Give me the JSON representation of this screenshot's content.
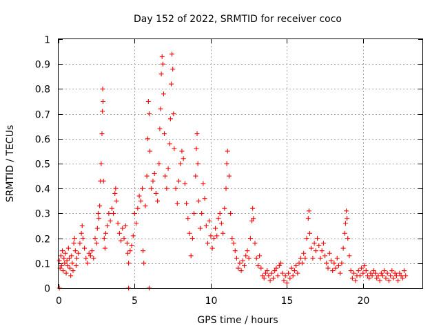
{
  "chart_data": {
    "type": "scatter",
    "title": "Day 152 of 2022, SRMTID for receiver coco",
    "xlabel": "GPS time / hours",
    "ylabel": "SRMTID / TECUs",
    "xlim": [
      0,
      23.9
    ],
    "ylim": [
      0,
      1
    ],
    "xticks": [
      0,
      5,
      10,
      15,
      20
    ],
    "xtick_labels": [
      "0",
      "5",
      "10",
      "15",
      "20"
    ],
    "yticks": [
      0,
      0.1,
      0.2,
      0.3,
      0.4,
      0.5,
      0.6,
      0.7,
      0.8,
      0.9,
      1
    ],
    "ytick_labels": [
      "0",
      "0.1",
      "0.2",
      "0.3",
      "0.4",
      "0.5",
      "0.6",
      "0.7",
      "0.8",
      "0.9",
      "1"
    ],
    "grid": true,
    "marker": "+",
    "color": "#ff0000",
    "series": [
      {
        "name": "SRMTID",
        "points": [
          [
            0.05,
            0.11
          ],
          [
            0.1,
            0.08
          ],
          [
            0.15,
            0.13
          ],
          [
            0.2,
            0.09
          ],
          [
            0.25,
            0.15
          ],
          [
            0.3,
            0.07
          ],
          [
            0.35,
            0.12
          ],
          [
            0.4,
            0.1
          ],
          [
            0.45,
            0.14
          ],
          [
            0.5,
            0.06
          ],
          [
            0.55,
            0.11
          ],
          [
            0.6,
            0.09
          ],
          [
            0.65,
            0.16
          ],
          [
            0.7,
            0.12
          ],
          [
            0.75,
            0.08
          ],
          [
            0.8,
            0.05
          ],
          [
            0.85,
            0.13
          ],
          [
            0.9,
            0.1
          ],
          [
            0.95,
            0.07
          ],
          [
            1.0,
            0.18
          ],
          [
            1.05,
            0.2
          ],
          [
            1.1,
            0.15
          ],
          [
            1.15,
            0.09
          ],
          [
            1.2,
            0.12
          ],
          [
            1.3,
            0.14
          ],
          [
            1.4,
            0.18
          ],
          [
            1.5,
            0.22
          ],
          [
            1.55,
            0.25
          ],
          [
            1.6,
            0.2
          ],
          [
            1.7,
            0.16
          ],
          [
            1.8,
            0.12
          ],
          [
            1.9,
            0.1
          ],
          [
            2.0,
            0.14
          ],
          [
            2.1,
            0.13
          ],
          [
            2.2,
            0.15
          ],
          [
            2.3,
            0.12
          ],
          [
            2.4,
            0.2
          ],
          [
            2.5,
            0.18
          ],
          [
            2.55,
            0.24
          ],
          [
            2.6,
            0.3
          ],
          [
            2.65,
            0.28
          ],
          [
            2.7,
            0.33
          ],
          [
            2.75,
            0.43
          ],
          [
            2.8,
            0.5
          ],
          [
            2.85,
            0.62
          ],
          [
            2.88,
            0.71
          ],
          [
            2.9,
            0.8
          ],
          [
            2.92,
            0.75
          ],
          [
            2.95,
            0.43
          ],
          [
            3.0,
            0.2
          ],
          [
            3.05,
            0.16
          ],
          [
            3.1,
            0.22
          ],
          [
            3.2,
            0.25
          ],
          [
            3.3,
            0.3
          ],
          [
            3.4,
            0.27
          ],
          [
            3.5,
            0.32
          ],
          [
            3.6,
            0.3
          ],
          [
            3.7,
            0.38
          ],
          [
            3.75,
            0.4
          ],
          [
            3.8,
            0.35
          ],
          [
            3.9,
            0.26
          ],
          [
            4.0,
            0.22
          ],
          [
            4.1,
            0.19
          ],
          [
            4.2,
            0.24
          ],
          [
            4.3,
            0.2
          ],
          [
            4.4,
            0.25
          ],
          [
            4.5,
            0.18
          ],
          [
            4.55,
            0.14
          ],
          [
            4.6,
            0.1
          ],
          [
            4.7,
            0.15
          ],
          [
            4.8,
            0.17
          ],
          [
            4.9,
            0.21
          ],
          [
            5.0,
            0.3
          ],
          [
            5.1,
            0.26
          ],
          [
            5.2,
            0.32
          ],
          [
            5.3,
            0.37
          ],
          [
            5.4,
            0.35
          ],
          [
            5.5,
            0.4
          ],
          [
            5.55,
            0.15
          ],
          [
            5.6,
            0.1
          ],
          [
            5.7,
            0.33
          ],
          [
            5.8,
            0.45
          ],
          [
            5.85,
            0.6
          ],
          [
            5.9,
            0.75
          ],
          [
            5.95,
            0.7
          ],
          [
            6.0,
            0.55
          ],
          [
            6.1,
            0.4
          ],
          [
            6.2,
            0.43
          ],
          [
            6.3,
            0.46
          ],
          [
            6.4,
            0.38
          ],
          [
            6.5,
            0.35
          ],
          [
            6.6,
            0.5
          ],
          [
            6.65,
            0.64
          ],
          [
            6.7,
            0.72
          ],
          [
            6.75,
            0.86
          ],
          [
            6.8,
            0.93
          ],
          [
            6.85,
            0.9
          ],
          [
            6.9,
            0.78
          ],
          [
            6.95,
            0.62
          ],
          [
            7.0,
            0.45
          ],
          [
            7.1,
            0.4
          ],
          [
            7.2,
            0.48
          ],
          [
            7.3,
            0.58
          ],
          [
            7.35,
            0.68
          ],
          [
            7.4,
            0.82
          ],
          [
            7.45,
            0.94
          ],
          [
            7.5,
            0.88
          ],
          [
            7.55,
            0.7
          ],
          [
            7.6,
            0.56
          ],
          [
            7.7,
            0.4
          ],
          [
            7.8,
            0.34
          ],
          [
            7.9,
            0.43
          ],
          [
            8.0,
            0.5
          ],
          [
            8.1,
            0.55
          ],
          [
            8.2,
            0.52
          ],
          [
            8.3,
            0.42
          ],
          [
            8.4,
            0.34
          ],
          [
            8.5,
            0.28
          ],
          [
            8.6,
            0.22
          ],
          [
            8.7,
            0.13
          ],
          [
            8.8,
            0.2
          ],
          [
            8.9,
            0.3
          ],
          [
            9.0,
            0.45
          ],
          [
            9.05,
            0.56
          ],
          [
            9.1,
            0.62
          ],
          [
            9.15,
            0.5
          ],
          [
            9.2,
            0.35
          ],
          [
            9.3,
            0.24
          ],
          [
            9.4,
            0.3
          ],
          [
            9.5,
            0.42
          ],
          [
            9.6,
            0.36
          ],
          [
            9.7,
            0.25
          ],
          [
            9.8,
            0.18
          ],
          [
            9.9,
            0.27
          ],
          [
            10.0,
            0.21
          ],
          [
            10.1,
            0.16
          ],
          [
            10.2,
            0.2
          ],
          [
            10.3,
            0.24
          ],
          [
            10.4,
            0.21
          ],
          [
            10.5,
            0.28
          ],
          [
            10.6,
            0.3
          ],
          [
            10.7,
            0.26
          ],
          [
            10.8,
            0.22
          ],
          [
            10.9,
            0.32
          ],
          [
            11.0,
            0.4
          ],
          [
            11.05,
            0.5
          ],
          [
            11.1,
            0.55
          ],
          [
            11.2,
            0.45
          ],
          [
            11.3,
            0.3
          ],
          [
            11.4,
            0.2
          ],
          [
            11.5,
            0.18
          ],
          [
            11.6,
            0.15
          ],
          [
            11.7,
            0.12
          ],
          [
            11.8,
            0.08
          ],
          [
            11.9,
            0.1
          ],
          [
            12.0,
            0.07
          ],
          [
            12.1,
            0.11
          ],
          [
            12.2,
            0.09
          ],
          [
            12.3,
            0.13
          ],
          [
            12.4,
            0.15
          ],
          [
            12.5,
            0.12
          ],
          [
            12.6,
            0.2
          ],
          [
            12.7,
            0.27
          ],
          [
            12.75,
            0.32
          ],
          [
            12.8,
            0.28
          ],
          [
            12.9,
            0.18
          ],
          [
            13.0,
            0.12
          ],
          [
            13.1,
            0.09
          ],
          [
            13.2,
            0.13
          ],
          [
            13.3,
            0.08
          ],
          [
            13.4,
            0.05
          ],
          [
            13.5,
            0.04
          ],
          [
            13.6,
            0.06
          ],
          [
            13.7,
            0.07
          ],
          [
            13.8,
            0.05
          ],
          [
            13.9,
            0.03
          ],
          [
            14.0,
            0.06
          ],
          [
            14.1,
            0.04
          ],
          [
            14.2,
            0.07
          ],
          [
            14.3,
            0.08
          ],
          [
            14.4,
            0.05
          ],
          [
            14.5,
            0.09
          ],
          [
            14.6,
            0.1
          ],
          [
            14.7,
            0.06
          ],
          [
            14.8,
            0.03
          ],
          [
            14.9,
            0.05
          ],
          [
            15.0,
            0.02
          ],
          [
            15.1,
            0.06
          ],
          [
            15.2,
            0.04
          ],
          [
            15.3,
            0.08
          ],
          [
            15.4,
            0.05
          ],
          [
            15.5,
            0.07
          ],
          [
            15.6,
            0.09
          ],
          [
            15.7,
            0.06
          ],
          [
            15.8,
            0.1
          ],
          [
            15.9,
            0.12
          ],
          [
            16.0,
            0.1
          ],
          [
            16.1,
            0.14
          ],
          [
            16.2,
            0.12
          ],
          [
            16.3,
            0.2
          ],
          [
            16.4,
            0.28
          ],
          [
            16.45,
            0.31
          ],
          [
            16.5,
            0.22
          ],
          [
            16.6,
            0.16
          ],
          [
            16.7,
            0.12
          ],
          [
            16.8,
            0.18
          ],
          [
            16.9,
            0.15
          ],
          [
            17.0,
            0.2
          ],
          [
            17.1,
            0.17
          ],
          [
            17.2,
            0.12
          ],
          [
            17.3,
            0.15
          ],
          [
            17.4,
            0.18
          ],
          [
            17.5,
            0.13
          ],
          [
            17.6,
            0.1
          ],
          [
            17.7,
            0.08
          ],
          [
            17.8,
            0.14
          ],
          [
            17.9,
            0.11
          ],
          [
            18.0,
            0.07
          ],
          [
            18.1,
            0.1
          ],
          [
            18.2,
            0.08
          ],
          [
            18.3,
            0.12
          ],
          [
            18.4,
            0.09
          ],
          [
            18.5,
            0.06
          ],
          [
            18.6,
            0.1
          ],
          [
            18.7,
            0.16
          ],
          [
            18.8,
            0.22
          ],
          [
            18.85,
            0.26
          ],
          [
            18.9,
            0.31
          ],
          [
            18.95,
            0.28
          ],
          [
            19.0,
            0.2
          ],
          [
            19.1,
            0.13
          ],
          [
            19.2,
            0.07
          ],
          [
            19.3,
            0.04
          ],
          [
            19.4,
            0.06
          ],
          [
            19.5,
            0.03
          ],
          [
            19.6,
            0.05
          ],
          [
            19.7,
            0.07
          ],
          [
            19.8,
            0.05
          ],
          [
            19.9,
            0.08
          ],
          [
            20.0,
            0.06
          ],
          [
            20.1,
            0.09
          ],
          [
            20.2,
            0.07
          ],
          [
            20.3,
            0.05
          ],
          [
            20.4,
            0.04
          ],
          [
            20.5,
            0.06
          ],
          [
            20.6,
            0.05
          ],
          [
            20.7,
            0.07
          ],
          [
            20.8,
            0.06
          ],
          [
            20.9,
            0.04
          ],
          [
            21.0,
            0.05
          ],
          [
            21.1,
            0.03
          ],
          [
            21.2,
            0.06
          ],
          [
            21.3,
            0.05
          ],
          [
            21.4,
            0.07
          ],
          [
            21.5,
            0.04
          ],
          [
            21.6,
            0.06
          ],
          [
            21.7,
            0.03
          ],
          [
            21.8,
            0.05
          ],
          [
            21.9,
            0.07
          ],
          [
            22.0,
            0.04
          ],
          [
            22.1,
            0.06
          ],
          [
            22.2,
            0.05
          ],
          [
            22.3,
            0.03
          ],
          [
            22.4,
            0.06
          ],
          [
            22.5,
            0.05
          ],
          [
            22.6,
            0.04
          ],
          [
            22.7,
            0.07
          ],
          [
            22.8,
            0.05
          ],
          [
            0.05,
            0.0
          ],
          [
            4.6,
            0.0
          ],
          [
            5.95,
            0.0
          ]
        ]
      }
    ]
  }
}
